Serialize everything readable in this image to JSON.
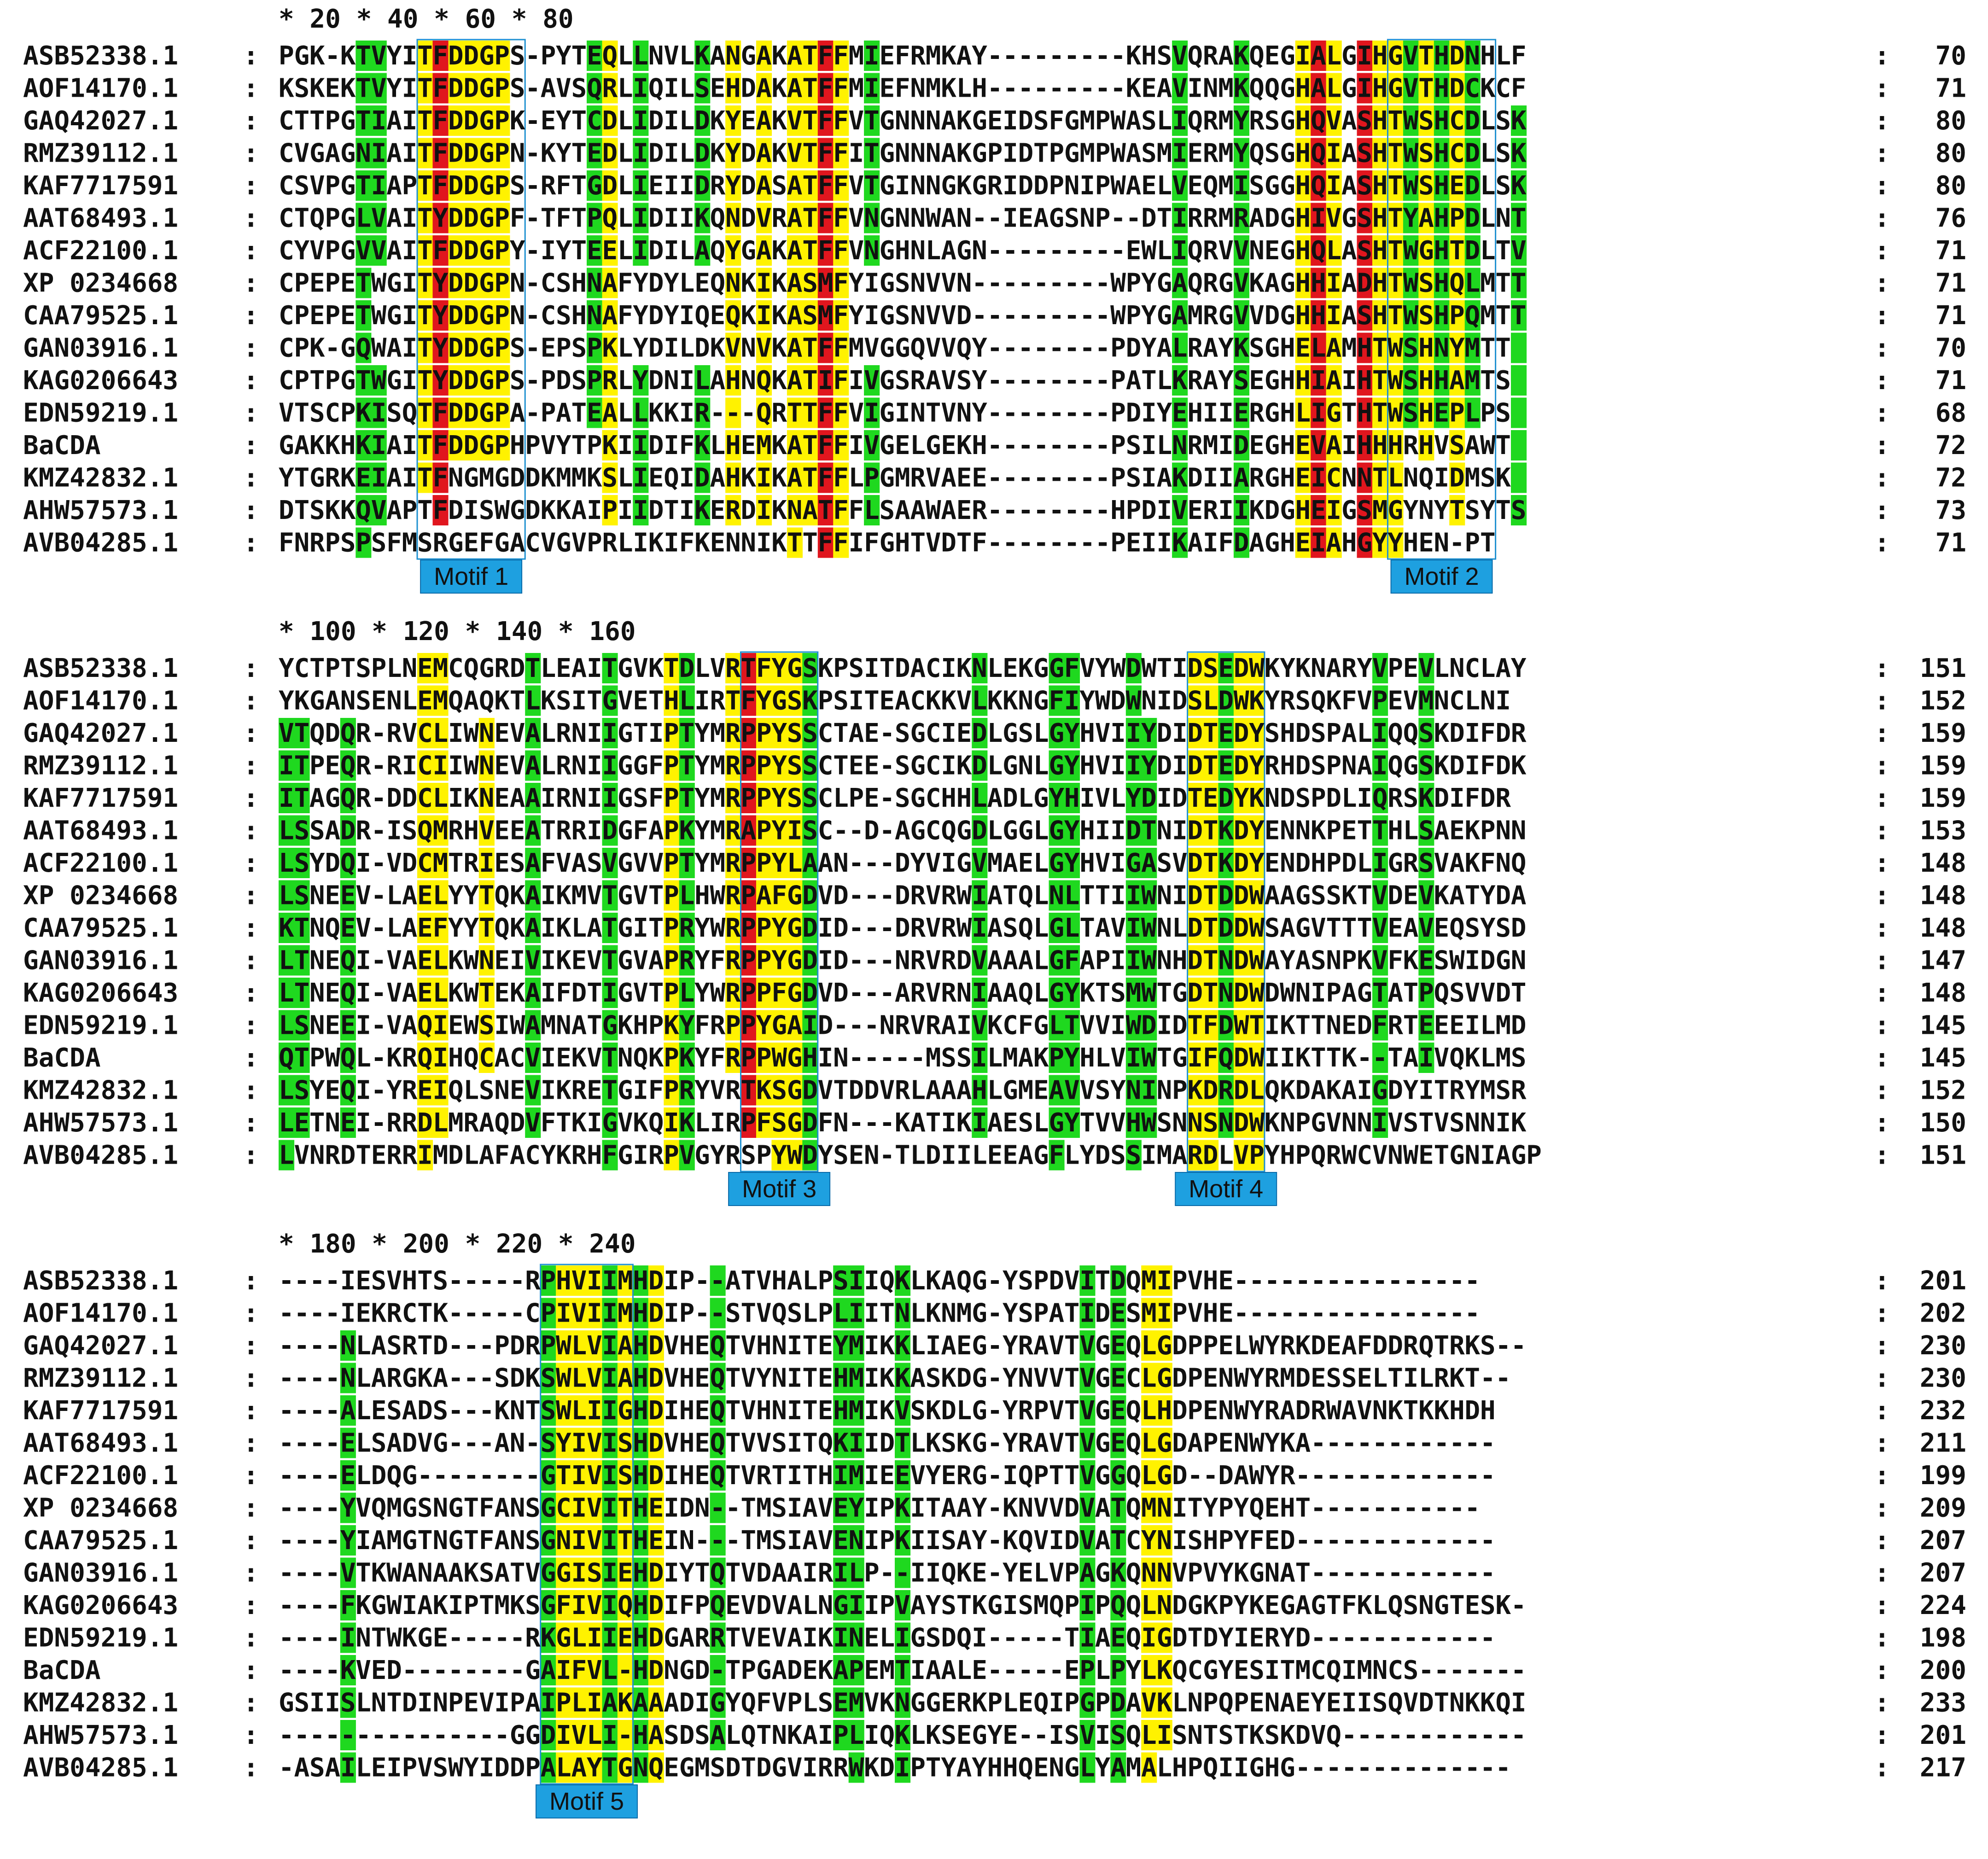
{
  "alignment": {
    "blocks": [
      {
        "ruler": "          *        20         *        40         *        60         *        80",
        "rows": [
          {
            "name": "ASB52338.1",
            "seq": "PGK-KTVYITFDDGPS-PYTEQLLNVLKANGAKATFFMIEFRMKAY---------KHSVQRAKQEGIALGIHGVTHDNHLF",
            "end": "70"
          },
          {
            "name": "AOF14170.1",
            "seq": "KSKEKTVYITFDDGPS-AVSQRLIQILSEHDAKATFFMIEFNMKLH---------KEAVINMKQQGHALGIHGVTHDCKCF",
            "end": "71"
          },
          {
            "name": "GAQ42027.1",
            "seq": "CTTPGTIAITFDDGPK-EYTCDLIDILDKYEAKVTFFVTGNNNAKGEIDSFGMPWASLIQRMYRSGHQVASHTWSHCDLSK",
            "end": "80"
          },
          {
            "name": "RMZ39112.1",
            "seq": "CVGAGNIAITFDDGPN-KYTEDLIDILDKYDAKVTFFITGNNNAKGPIDTPGMPWASMIERMYQSGHQIASHTWSHCDLSK",
            "end": "80"
          },
          {
            "name": "KAF7717591",
            "seq": "CSVPGTIAPTFDDGPS-RFTGDLIEIIDRYDASATFFVTGINNGKGRIDDPNIPWAELVEQMISGGHQIASHTWSHEDLSK",
            "end": "80"
          },
          {
            "name": "AAT68493.1",
            "seq": "CTQPGLVAITYDDGPF-TFTPQLIDIIKQNDVRATFFVNGNNWAN--IEAGSNP--DTIRRMRADGHIVGSHTYAHPDLNT",
            "end": "76"
          },
          {
            "name": "ACF22100.1",
            "seq": "CYVPGVVAITFDDGPY-IYTEELIDILAQYGAKATFFVNGHNLAGN---------EWLIQRVVNEGHQLASHTWGHTDLTV",
            "end": "71"
          },
          {
            "name": "XP 0234668",
            "seq": "CPEPETWGITYDDGPN-CSHNAFYDYLEQNKIKASMFYIGSNVVN---------WPYGAQRGVKAGHHIADHTWSHQLMTT",
            "end": "71"
          },
          {
            "name": "CAA79525.1",
            "seq": "CPEPETWGITYDDGPN-CSHNAFYDYIQEQKIKASMFYIGSNVVD---------WPYGAMRGVVDGHHIASHTWSHPQMTT",
            "end": "71"
          },
          {
            "name": "GAN03916.1",
            "seq": "CPK-GQWAITYDDGPS-EPSPKLYDILDKVNVKATFFMVGGQVVQY--------PDYALRAYKSGHELAMHTWSHNYMTT",
            "end": "70"
          },
          {
            "name": "KAG0206643",
            "seq": "CPTPGTWGITYDDGPS-PDSPRLYDNILAHNQKATIFIVGSRAVSY--------PATLKRAYSEGHHIAIHTWSHHAMTS",
            "end": "71"
          },
          {
            "name": "EDN59219.1",
            "seq": "VTSCPKISQTFDDGPA-PATEALLKKIR---QRTTFFVIGINTVNY--------PDIYEHIIERGHLIGTHTWSHEPLPS",
            "end": "68"
          },
          {
            "name": "BaCDA",
            "seq": "GAKKHKIAITFDDGPHPVYTPKIIDIFKLHEMKATFFIVGELGEKH--------PSILNRMIDEGHEVAIHHHRHVSAWT",
            "end": "72"
          },
          {
            "name": "KMZ42832.1",
            "seq": "YTGRKEIAITFNGMGDDKMMKSLIEQIDAHKIKATFFLPGMRVAEE--------PSIAKDIIARGHEICNNTLNQIDMSK",
            "end": "72"
          },
          {
            "name": "AHW57573.1",
            "seq": "DTSKKQVAPTFDISWGDKKAIPIIDTIKERDIKNATFFLSAAWAER--------HPDIVERIIKDGHEIGSMGYNYTSYTS",
            "end": "73"
          },
          {
            "name": "AVB04285.1",
            "seq": "FNRPSPSFMSRGEFGACVGVPRLIKIFKENNIKTTFFIFGHTVDTF--------PEIIKAIFDAGHEIAHGYYHEN-PT",
            "end": "71"
          }
        ]
      },
      {
        "ruler": "  *        100         *        120         *        140         *        160",
        "rows": [
          {
            "name": "ASB52338.1",
            "seq": "YCTPTSPLNEMCQGRDTLEAITGVKTDLVRTFYGSKPSITDACIKNLEKGGFVYWDWTIDSEDWKYKNARYVPEVLNCLAY",
            "end": "151"
          },
          {
            "name": "AOF14170.1",
            "seq": "YKGANSENLEMQAQKTLKSITGVETHLIRTFYGSKPSITEACKKVLKKNGFIYWDWNIDSLDWKYRSQKFVPEVMNCLNI",
            "end": "152"
          },
          {
            "name": "GAQ42027.1",
            "seq": "VTQDQR-RVCLIWNEVALRNIIGTIPTYMRPPYSSCTAE-SGCIEDLGSLGYHVIIYDIDTEDYSHDSPALIQQSKDIFDR",
            "end": "159"
          },
          {
            "name": "RMZ39112.1",
            "seq": "ITPEQR-RICIIWNEVALRNIIGGFPTYMRPPYSSCTEE-SGCIKDLGNLGYHVIIYDIDTEDYRHDSPNAIQGSKDIFDK",
            "end": "159"
          },
          {
            "name": "KAF7717591",
            "seq": "ITAGQR-DDCLIKNEAAIRNIIGSFPTYMRPPYSSCLPE-SGCHHLADLGYHIVLYDIDTEDYKNDSPDLIQRSKDIFDR",
            "end": "159"
          },
          {
            "name": "AAT68493.1",
            "seq": "LSSADR-ISQMRHVEEATRRIDGFAPKYMRAPYISC--D-AGCQGDLGGLGYHIIDTNIDTKDYENNKPETTHLSAEKPNN",
            "end": "153"
          },
          {
            "name": "ACF22100.1",
            "seq": "LSYDQI-VDCMTRIESAFVASVGVVPTYMRPPYLAAN---DYVIGVMAELGYHVIGASVDTKDYENDHPDLIGRSVAKFNQ",
            "end": "148"
          },
          {
            "name": "XP 0234668",
            "seq": "LSNEEV-LAELYYTQKAIKMVTGVTPLHWRPAFGDVD---DRVRWIATQLNLTTIIWNIDTDDWAAGSSKTVDEVKATYDA",
            "end": "148"
          },
          {
            "name": "CAA79525.1",
            "seq": "KTNQEV-LAEFYYTQKAIKLATGITPRYWRPPYGDID---DRVRWIASQLGLTAVIWNLDTDDWSAGVTTTVEAVEQSYSD",
            "end": "148"
          },
          {
            "name": "GAN03916.1",
            "seq": "LTNEQI-VAELKWNEIVIKEVTGVAPRYFRPPYGDID---NRVRDVAAALGFAPIIWNHDTNDWAYASNPKVFKESWIDGN",
            "end": "147"
          },
          {
            "name": "KAG0206643",
            "seq": "LTNEQI-VAELKWTEKAIFDTIGVTPLYWRPPFGDVD---ARVRNIAAQLGYKTSMWTGDTNDWDWNIPAGTATPQSVVDT",
            "end": "148"
          },
          {
            "name": "EDN59219.1",
            "seq": "LSNEEI-VAQIEWSIWAMNATGKHPKYFRPPYGAID---NRVRAIVKCFGLTVVIWDIDTFDWTIKTTNEDFRTEEEILMD",
            "end": "145"
          },
          {
            "name": "BaCDA",
            "seq": "QTPWQL-KRQIHQCACVIEKVTNQKPKYFRPPWGHIN-----MSSILMAKPYHLVIWTGIFQDWIIKTTK--TAIVQKLMS",
            "end": "145"
          },
          {
            "name": "KMZ42832.1",
            "seq": "LSYEQI-YREIQLSNEVIKRETGIFPRYVRTKSGDVTDDVRLAAAHLGMEAVVSYNINPKDRDLQKDAKAIGDYITRYMSR",
            "end": "152"
          },
          {
            "name": "AHW57573.1",
            "seq": "LETNEI-RRDLMRAQDVFTKIGVKQIKLIRPFSGDFN---KATIKIAESLGYTVVHWSNNSNDWKNPGVNNIVSTVSNNIK",
            "end": "150"
          },
          {
            "name": "AVB04285.1",
            "seq": "LVNRDTERRIMDLAFACYKRHFGIRPVGYRSPYWDYSEN-TLDIILEEAGFLYDSSIMARDLVPYHPQRWCVNWETGNIAGP",
            "end": "151"
          }
        ]
      },
      {
        "ruler": " *        180         *        200         *        220         *        240",
        "rows": [
          {
            "name": "ASB52338.1",
            "seq": "----IESVHTS-----RPHVIIMHDIP--ATVHALPSIIQKLKAQG-YSPDVITDQMIPVHE----------------",
            "end": "201"
          },
          {
            "name": "AOF14170.1",
            "seq": "----IEKRCTK-----CPIVIIMHDIP--STVQSLPLIITNLKNMG-YSPATIDESMIPVHE----------------",
            "end": "202"
          },
          {
            "name": "GAQ42027.1",
            "seq": "----NLASRTD---PDRPWLVIAHDVHEQTVHNITEYMIKKLIAEG-YRAVTVGEQLGDPPELWYRKDEAFDDRQTRKS--",
            "end": "230"
          },
          {
            "name": "RMZ39112.1",
            "seq": "----NLARGKA---SDKSWLVIAHDVHEQTVYNITEHMIKKASKDG-YNVVTVGECLGDPENWYRMDESSELTILRKT--",
            "end": "230"
          },
          {
            "name": "KAF7717591",
            "seq": "----ALESADS---KNTSWLIIGHDIHEQTVHNITEHMIKVSKDLG-YRPVTVGEQLHDPENWYRADRWAVNKTKKHDH",
            "end": "232"
          },
          {
            "name": "AAT68493.1",
            "seq": "----ELSADVG---AN-SYIVISHDVHEQTVVSITQKIIDTLKSKG-YRAVTVGEQLGDAPENWYKA------------",
            "end": "211"
          },
          {
            "name": "ACF22100.1",
            "seq": "----ELDQG--------GTIVISHDIHEQTVRTITHIMIEEVYERG-IQPTTVGGQLGD--DAWYR-------------",
            "end": "199"
          },
          {
            "name": "XP 0234668",
            "seq": "----YVQMGSNGTFANSGCIVITHEIDN--TMSIAVEYIPKITAAY-KNVVDVATQMNITYPYQEHT-----------",
            "end": "209"
          },
          {
            "name": "CAA79525.1",
            "seq": "----YIAMGTNGTFANSGNIVITHEIN---TMSIAVENIPKIISAY-KQVIDVATCYNISHPYFED-------------",
            "end": "207"
          },
          {
            "name": "GAN03916.1",
            "seq": "----VTKWANAAKSATVGGISIEHDIYTQTVDAAIRILP--IIQKE-YELVPAGKQNNVPVYKGNAT------------",
            "end": "207"
          },
          {
            "name": "KAG0206643",
            "seq": "----FKGWIAKIPTMKSGFIVIQHDIFPQEVDVALNGIIPVAYSTKGISMQPIPQQLNDGKPYKEGAGTFKLQSNGTESK-",
            "end": "224"
          },
          {
            "name": "EDN59219.1",
            "seq": "----INTWKGE-----RKGLIIEHDGARRTVEVAIKINELIGSDQI-----TIAEQIGDTDYIERYD------------",
            "end": "198"
          },
          {
            "name": "BaCDA",
            "seq": "----KVED--------GAIFVL-HDNGD-TPGADEKAPEMTIAALE-----EPLPYLKQCGYESITMCQIMNCS-------",
            "end": "200"
          },
          {
            "name": "KMZ42832.1",
            "seq": "GSIISLNTDINPEVIPAIPLIAKAAADIGYQFVPLSEMVKNGGERKPLEQIPGPDAVKLNPQPENAEYEIISQVDTNKKQI",
            "end": "233"
          },
          {
            "name": "AHW57573.1",
            "seq": "---------------GGDIVLI-HASDSALQTNKAIPLIQKLKSEGYE--ISVISQLISNTSTKSKDVQ------------",
            "end": "201"
          },
          {
            "name": "AVB04285.1",
            "seq": "-ASAILEIPVSWYIDDPALAYTGNQEGMSDTDGVIRRWKDIPTYAYHHQENGLYAMALHPQIIGHG--------------",
            "end": "217"
          }
        ]
      }
    ],
    "motifs": [
      {
        "label": "Motif 1"
      },
      {
        "label": "Motif 2"
      },
      {
        "label": "Motif 3"
      },
      {
        "label": "Motif 4"
      },
      {
        "label": "Motif 5"
      }
    ],
    "colors": {
      "red": "#e0161e",
      "yellow": "#fff200",
      "green": "#1fd81f",
      "motif_box": "#1e90d0",
      "motif_fill": "#1ea0e0"
    }
  }
}
